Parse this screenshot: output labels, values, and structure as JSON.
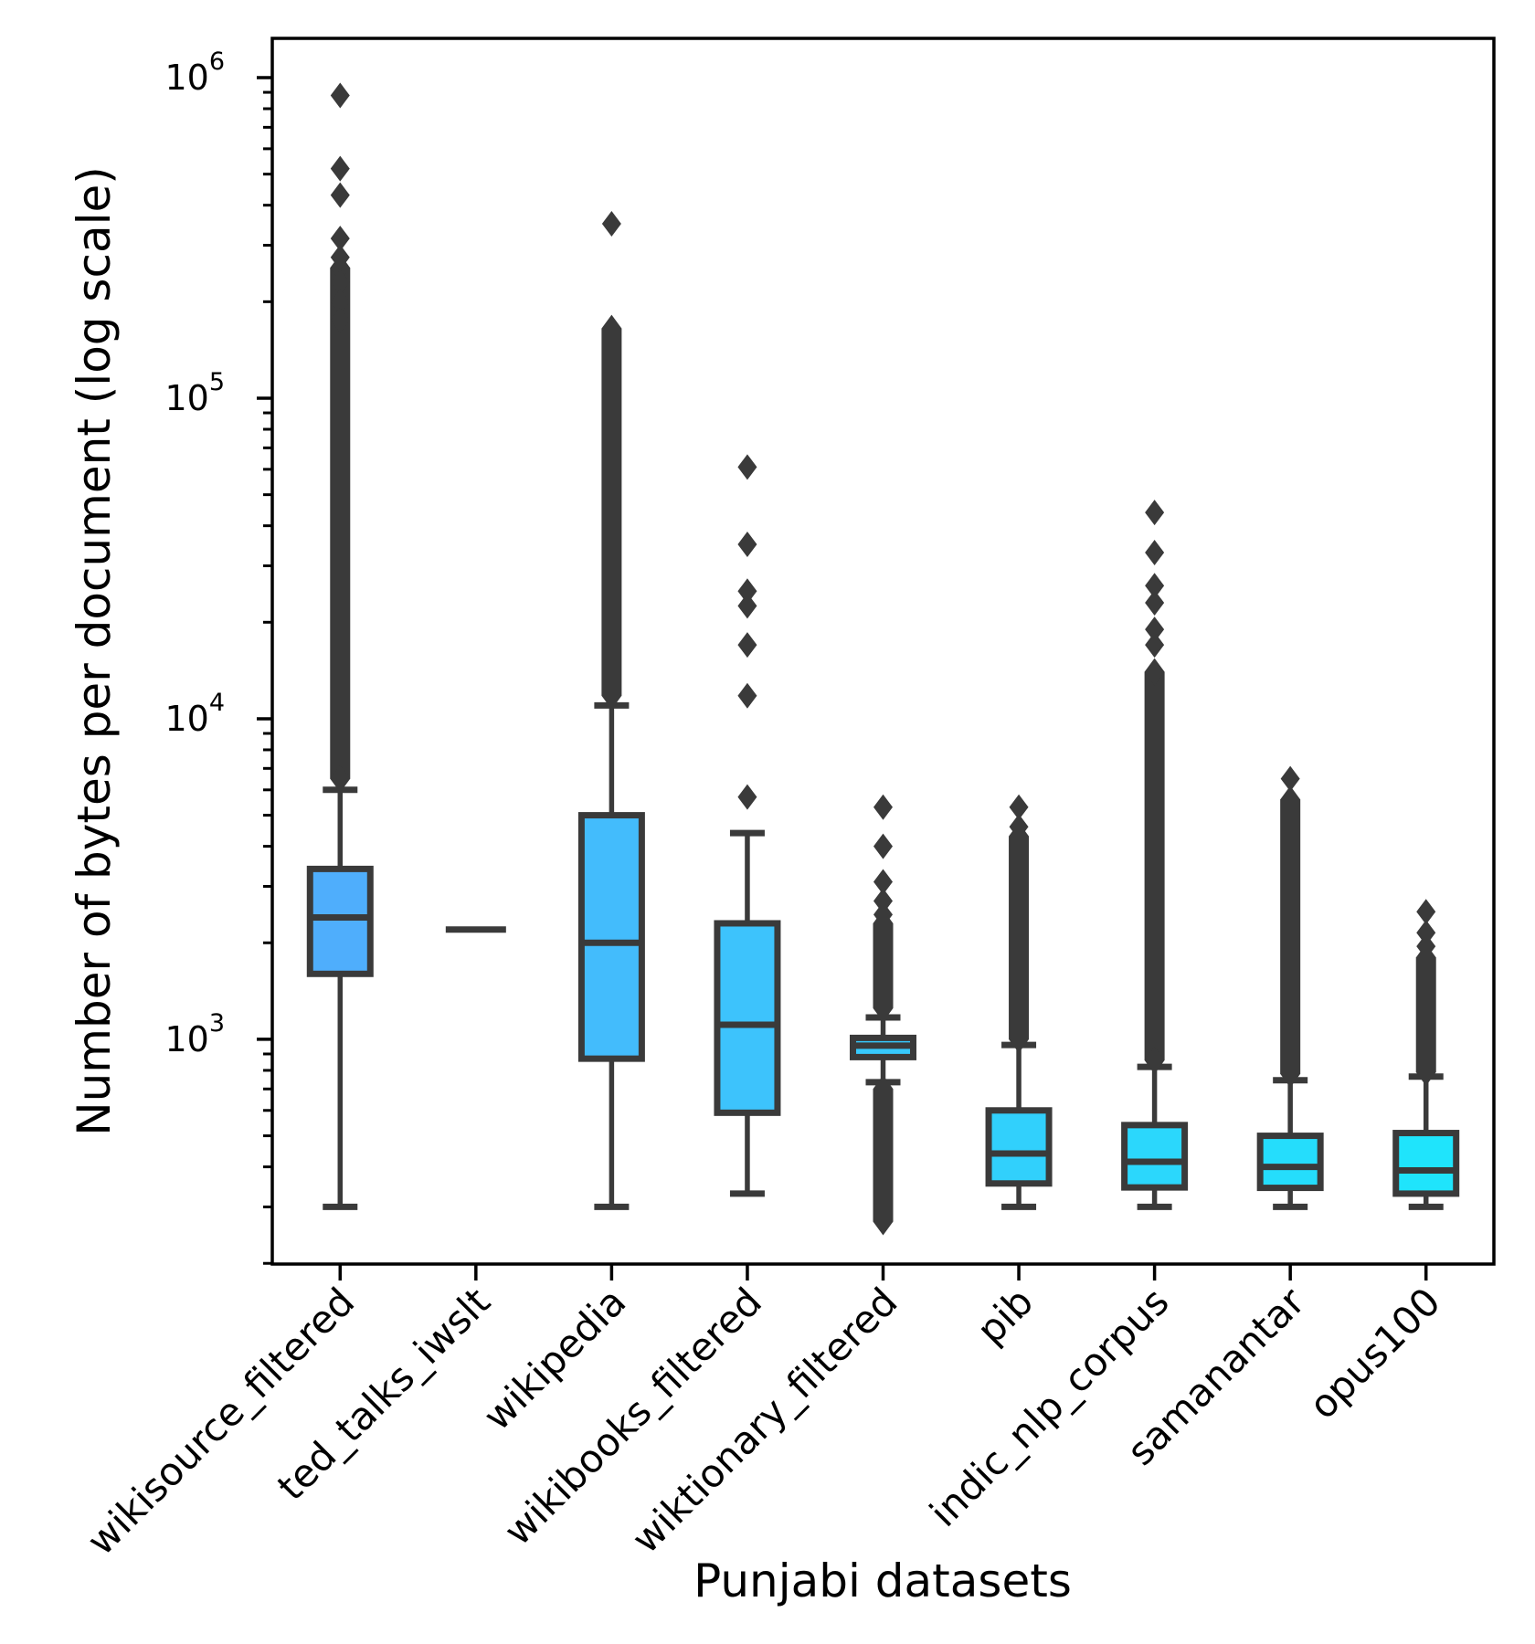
{
  "figure": {
    "ylabel": "Number of bytes per document (log scale)",
    "xlabel": "Punjabi datasets",
    "background": "#ffffff",
    "mark_color": "#3A3A3A",
    "axis_color": "#000000"
  },
  "chart_data": {
    "type": "boxplot",
    "yscale": "log",
    "ylim": [
      199,
      1326000
    ],
    "grid": false,
    "y_major_exponents": [
      3,
      4,
      5,
      6
    ],
    "xlabel": "Punjabi datasets",
    "ylabel": "Number of bytes per document (log scale)",
    "datasets": [
      {
        "label": "wikisource_filtered",
        "fill": "#4FAEFC",
        "box": {
          "whisker_low": 300,
          "q1": 1600,
          "median": 2400,
          "q3": 3400,
          "whisker_high": 6000
        },
        "outliers": [
          880000,
          520000,
          430000,
          315000,
          275000,
          230000,
          200000,
          175000
        ],
        "outlier_bands": [
          {
            "from": 6500,
            "to": 255000
          }
        ]
      },
      {
        "label": "ted_talks_iwslt",
        "fill": "#49B5FC",
        "box": {
          "median_only": 2200
        },
        "outliers": [],
        "outlier_bands": []
      },
      {
        "label": "wikipedia",
        "fill": "#43BCFC",
        "box": {
          "whisker_low": 300,
          "q1": 870,
          "median": 2000,
          "q3": 5000,
          "whisker_high": 11000
        },
        "outliers": [
          350000,
          150000,
          130000,
          110000
        ],
        "outlier_bands": [
          {
            "from": 11800,
            "to": 165000
          }
        ]
      },
      {
        "label": "wikibooks_filtered",
        "fill": "#3DC3FC",
        "box": {
          "whisker_low": 330,
          "q1": 590,
          "median": 1110,
          "q3": 2300,
          "whisker_high": 4400
        },
        "outliers": [
          61000,
          35000,
          25000,
          22500,
          17000,
          11800,
          5700
        ],
        "outlier_bands": []
      },
      {
        "label": "wiktionary_filtered",
        "fill": "#37C9FC",
        "box": {
          "whisker_low": 735,
          "q1": 880,
          "median": 955,
          "q3": 1010,
          "whisker_high": 1170
        },
        "outliers": [
          5300,
          4000,
          3100,
          2700,
          2450
        ],
        "outlier_bands": [
          {
            "from": 1250,
            "to": 2300
          },
          {
            "from": 270,
            "to": 700
          }
        ]
      },
      {
        "label": "pib",
        "fill": "#31D0FC",
        "box": {
          "whisker_low": 300,
          "q1": 355,
          "median": 440,
          "q3": 600,
          "whisker_high": 960
        },
        "outliers": [
          5300,
          4600
        ],
        "outlier_bands": [
          {
            "from": 1000,
            "to": 4300
          }
        ]
      },
      {
        "label": "indic_nlp_corpus",
        "fill": "#2BD7FC",
        "box": {
          "whisker_low": 300,
          "q1": 345,
          "median": 415,
          "q3": 540,
          "whisker_high": 820
        },
        "outliers": [
          44000,
          33000,
          26000,
          23000,
          19000,
          17000
        ],
        "outlier_bands": [
          {
            "from": 860,
            "to": 14000
          }
        ]
      },
      {
        "label": "samanantar",
        "fill": "#25DDFC",
        "box": {
          "whisker_low": 300,
          "q1": 344,
          "median": 400,
          "q3": 500,
          "whisker_high": 745
        },
        "outliers": [
          6500,
          5000,
          4400
        ],
        "outlier_bands": [
          {
            "from": 780,
            "to": 5600
          }
        ]
      },
      {
        "label": "opus100",
        "fill": "#1FE4FC",
        "box": {
          "whisker_low": 300,
          "q1": 330,
          "median": 390,
          "q3": 510,
          "whisker_high": 765
        },
        "outliers": [
          2500,
          2150,
          1950
        ],
        "outlier_bands": [
          {
            "from": 790,
            "to": 1800
          }
        ]
      }
    ]
  }
}
